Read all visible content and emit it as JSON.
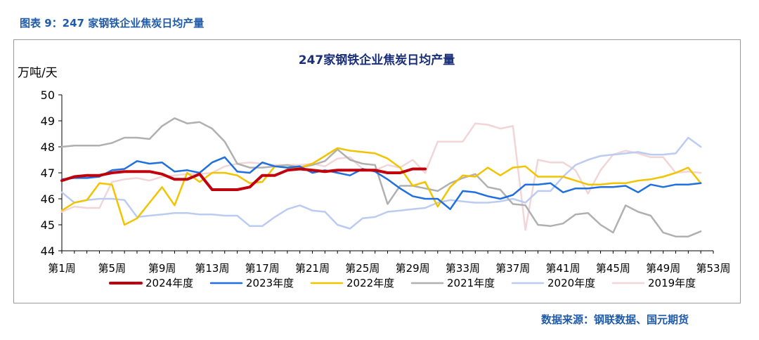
{
  "figure_label": "图表 9：247 家钢铁企业焦炭日均产量",
  "source": "数据来源：钢联数据、国元期货",
  "chart_data": {
    "type": "line",
    "title": "247家钢铁企业焦炭日均产量",
    "ylabel": "万吨/天",
    "xlabel": "",
    "ylim": [
      44,
      50
    ],
    "yticks": [
      44,
      45,
      46,
      47,
      48,
      49,
      50
    ],
    "x_count": 53,
    "xtick_labels": [
      "第1周",
      "第5周",
      "第9周",
      "第13周",
      "第17周",
      "第21周",
      "第25周",
      "第29周",
      "第33周",
      "第37周",
      "第41周",
      "第45周",
      "第49周",
      "第53周"
    ],
    "xtick_weeks": [
      1,
      5,
      9,
      13,
      17,
      21,
      25,
      29,
      33,
      37,
      41,
      45,
      49,
      53
    ],
    "legend_position": "bottom",
    "series": [
      {
        "name": "2024年度",
        "color": "#c0000b",
        "width": 4,
        "values": [
          46.7,
          46.85,
          46.9,
          46.9,
          47.0,
          47.05,
          47.05,
          47.05,
          46.95,
          46.75,
          46.75,
          46.95,
          46.35,
          46.35,
          46.35,
          46.45,
          46.9,
          46.9,
          47.1,
          47.15,
          47.1,
          47.05,
          47.1,
          47.1,
          47.1,
          47.1,
          47.0,
          47.0,
          47.15,
          47.15
        ]
      },
      {
        "name": "2023年度",
        "color": "#1f6fe0",
        "width": 2.5,
        "values": [
          46.75,
          46.8,
          46.8,
          46.85,
          47.1,
          47.15,
          47.45,
          47.35,
          47.4,
          47.05,
          47.1,
          47.0,
          47.4,
          47.6,
          47.05,
          47.0,
          47.4,
          47.25,
          47.2,
          47.25,
          47.0,
          47.1,
          47.0,
          46.9,
          47.15,
          47.05,
          46.75,
          46.4,
          46.1,
          46.0,
          46.0,
          45.6,
          46.3,
          46.25,
          46.1,
          46.0,
          46.15,
          46.55,
          46.55,
          46.6,
          46.25,
          46.4,
          46.4,
          46.45,
          46.45,
          46.5,
          46.25,
          46.55,
          46.45,
          46.55,
          46.55,
          46.6
        ]
      },
      {
        "name": "2022年度",
        "color": "#f2c400",
        "width": 2.5,
        "values": [
          45.55,
          45.85,
          45.95,
          46.6,
          46.55,
          45.0,
          45.25,
          45.85,
          46.45,
          45.75,
          47.0,
          46.65,
          47.0,
          47.0,
          46.9,
          46.6,
          46.65,
          47.25,
          47.2,
          47.2,
          47.35,
          47.65,
          47.95,
          47.85,
          47.8,
          47.75,
          47.55,
          47.2,
          46.5,
          46.65,
          45.7,
          46.45,
          46.9,
          46.85,
          47.2,
          46.9,
          47.2,
          47.25,
          46.85,
          46.85,
          46.85,
          46.7,
          46.55,
          46.55,
          46.6,
          46.6,
          46.7,
          46.75,
          46.85,
          47.0,
          47.2,
          46.6
        ]
      },
      {
        "name": "2021年度",
        "color": "#b0b0b0",
        "width": 2.5,
        "values": [
          48.0,
          48.05,
          48.05,
          48.05,
          48.15,
          48.35,
          48.35,
          48.3,
          48.8,
          49.1,
          48.9,
          48.95,
          48.7,
          48.2,
          47.35,
          47.2,
          47.2,
          47.25,
          47.3,
          47.2,
          47.3,
          47.45,
          47.9,
          47.5,
          47.35,
          47.3,
          45.8,
          46.5,
          46.5,
          46.4,
          46.3,
          46.6,
          46.8,
          46.95,
          46.45,
          46.35,
          45.8,
          45.75,
          45.0,
          44.95,
          45.05,
          45.4,
          45.45,
          45.0,
          44.7,
          45.75,
          45.5,
          45.35,
          44.7,
          44.55,
          44.55,
          44.75
        ]
      },
      {
        "name": "2020年度",
        "color": "#bccbf1",
        "width": 2.5,
        "values": [
          46.25,
          45.85,
          45.95,
          46.0,
          46.0,
          45.95,
          45.3,
          45.35,
          45.4,
          45.45,
          45.45,
          45.4,
          45.4,
          45.35,
          45.35,
          44.95,
          44.95,
          45.3,
          45.6,
          45.75,
          45.55,
          45.5,
          45.0,
          44.85,
          45.25,
          45.3,
          45.5,
          45.55,
          45.6,
          45.65,
          45.85,
          45.95,
          45.9,
          45.85,
          45.85,
          45.9,
          46.0,
          45.85,
          46.3,
          46.3,
          46.85,
          47.3,
          47.5,
          47.65,
          47.7,
          47.75,
          47.8,
          47.7,
          47.7,
          47.75,
          48.35,
          48.0
        ]
      },
      {
        "name": "2019年度",
        "color": "#f2d5d7",
        "width": 2.5,
        "values": [
          45.5,
          45.7,
          45.65,
          45.65,
          46.65,
          46.75,
          46.8,
          46.7,
          46.85,
          46.9,
          46.95,
          46.95,
          47.0,
          47.25,
          47.35,
          47.4,
          47.35,
          47.3,
          47.3,
          47.3,
          47.35,
          47.25,
          47.55,
          47.6,
          47.15,
          47.1,
          47.3,
          47.2,
          47.5,
          47.0,
          48.2,
          48.2,
          48.2,
          48.9,
          48.85,
          48.7,
          48.8,
          44.8,
          47.5,
          47.4,
          47.4,
          47.1,
          46.2,
          47.1,
          47.7,
          47.85,
          47.75,
          47.6,
          47.6,
          47.0,
          47.05,
          47.0
        ]
      }
    ]
  }
}
